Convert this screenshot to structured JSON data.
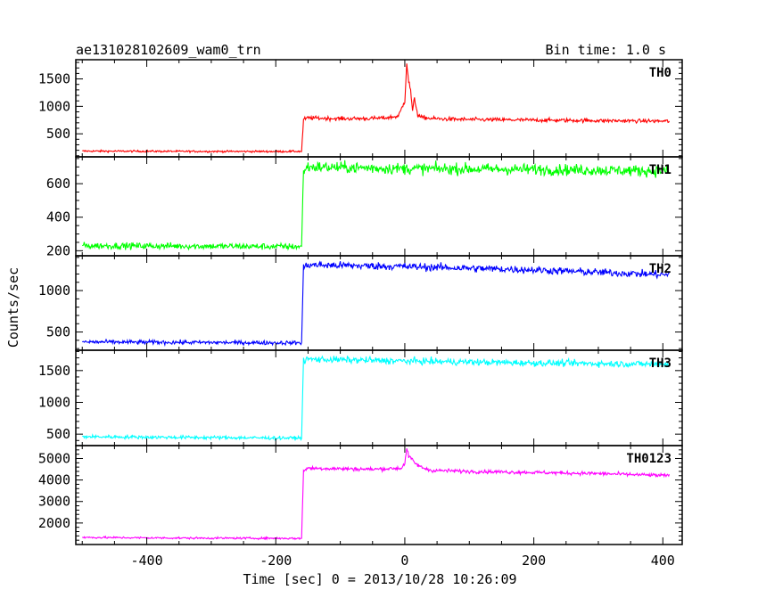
{
  "header": {
    "left_title": "ae131028102609_wam0_trn",
    "right_title": "Bin time: 1.0 s"
  },
  "chart_data": {
    "type": "line",
    "xlabel": "Time [sec] 0 = 2013/10/28 10:26:09",
    "ylabel": "Counts/sec",
    "xlim": [
      -510,
      430
    ],
    "x_ticks": [
      -400,
      -200,
      0,
      200,
      400
    ],
    "x_minor_step": 50,
    "panels": [
      {
        "name": "TH0",
        "color": "#ff0000",
        "ylim": [
          80,
          1850
        ],
        "y_ticks": [
          500,
          1000,
          1500
        ],
        "y_minor_step": 100,
        "x": [
          -500,
          -350,
          -200,
          -160,
          -157,
          -150,
          -100,
          -50,
          -30,
          -10,
          0,
          3,
          6,
          9,
          12,
          15,
          20,
          25,
          40,
          60,
          100,
          200,
          300,
          410
        ],
        "y": [
          185,
          180,
          178,
          180,
          760,
          790,
          775,
          780,
          790,
          820,
          1100,
          1800,
          1450,
          1300,
          900,
          1150,
          850,
          800,
          780,
          770,
          760,
          750,
          740,
          730
        ]
      },
      {
        "name": "TH1",
        "color": "#00ff00",
        "ylim": [
          170,
          760
        ],
        "y_ticks": [
          200,
          400,
          600
        ],
        "y_minor_step": 50,
        "x": [
          -500,
          -350,
          -200,
          -160,
          -157,
          -150,
          0,
          200,
          410
        ],
        "y": [
          230,
          228,
          225,
          225,
          680,
          700,
          690,
          685,
          675
        ]
      },
      {
        "name": "TH2",
        "color": "#0000ff",
        "ylim": [
          280,
          1420
        ],
        "y_ticks": [
          500,
          1000
        ],
        "y_minor_step": 100,
        "x": [
          -500,
          -350,
          -200,
          -160,
          -157,
          -150,
          0,
          200,
          300,
          410
        ],
        "y": [
          380,
          375,
          370,
          370,
          1280,
          1310,
          1290,
          1250,
          1220,
          1190
        ]
      },
      {
        "name": "TH3",
        "color": "#00ffff",
        "ylim": [
          320,
          1820
        ],
        "y_ticks": [
          500,
          1000,
          1500
        ],
        "y_minor_step": 100,
        "x": [
          -500,
          -350,
          -200,
          -160,
          -157,
          -150,
          0,
          200,
          410
        ],
        "y": [
          460,
          450,
          440,
          440,
          1660,
          1680,
          1650,
          1620,
          1600
        ]
      },
      {
        "name": "TH0123",
        "color": "#ff00ff",
        "ylim": [
          1000,
          5600
        ],
        "y_ticks": [
          2000,
          3000,
          4000,
          5000
        ],
        "y_minor_step": 200,
        "x": [
          -500,
          -350,
          -200,
          -160,
          -157,
          -150,
          -50,
          -5,
          0,
          3,
          6,
          10,
          15,
          25,
          40,
          100,
          200,
          300,
          410
        ],
        "y": [
          1330,
          1300,
          1290,
          1280,
          4450,
          4550,
          4500,
          4550,
          4800,
          5450,
          5100,
          5000,
          4800,
          4600,
          4450,
          4400,
          4350,
          4300,
          4200
        ]
      }
    ]
  }
}
